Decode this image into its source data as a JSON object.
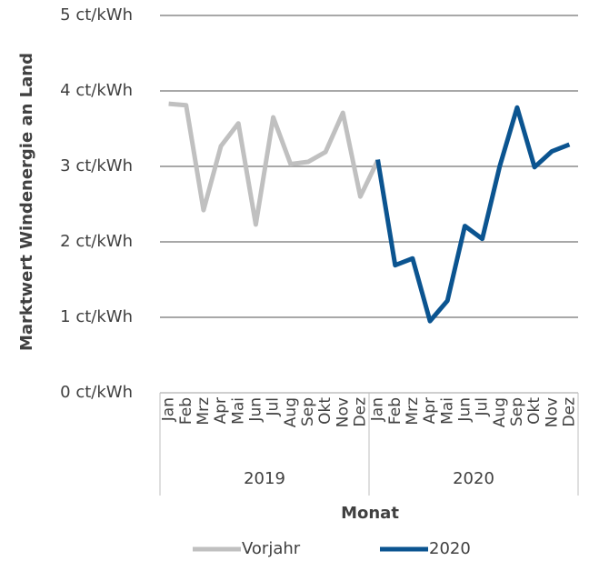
{
  "chart_data": {
    "type": "line",
    "y_label": "Marktwert Windenergie an Land",
    "x_label": "Monat",
    "categories": [
      "Jan",
      "Feb",
      "Mrz",
      "Apr",
      "Mai",
      "Jun",
      "Jul",
      "Aug",
      "Sep",
      "Okt",
      "Nov",
      "Dez",
      "Jan",
      "Feb",
      "Mrz",
      "Apr",
      "Mai",
      "Jun",
      "Jul",
      "Aug",
      "Sep",
      "Okt",
      "Nov",
      "Dez"
    ],
    "groups": [
      "2019",
      "2020"
    ],
    "series": [
      {
        "name": "Vorjahr",
        "color": "#c0c0c0",
        "values": [
          3.83,
          3.81,
          2.42,
          3.27,
          3.57,
          2.23,
          3.65,
          3.03,
          3.06,
          3.19,
          3.71,
          2.6,
          3.08,
          null,
          null,
          null,
          null,
          null,
          null,
          null,
          null,
          null,
          null,
          null
        ]
      },
      {
        "name": "2020",
        "color": "#0b5490",
        "values": [
          null,
          null,
          null,
          null,
          null,
          null,
          null,
          null,
          null,
          null,
          null,
          null,
          3.09,
          1.69,
          1.78,
          0.95,
          1.22,
          2.21,
          2.04,
          3.0,
          3.78,
          2.99,
          3.2,
          3.29
        ]
      }
    ],
    "ylim": [
      0,
      5
    ],
    "yticks": [
      {
        "value": 0,
        "label": "0 ct/kWh"
      },
      {
        "value": 1,
        "label": "1 ct/kWh"
      },
      {
        "value": 2,
        "label": "2 ct/kWh"
      },
      {
        "value": 3,
        "label": "3 ct/kWh"
      },
      {
        "value": 4,
        "label": "4 ct/kWh"
      },
      {
        "value": 5,
        "label": "5 ct/kWh"
      }
    ],
    "grid": true,
    "legend": "bottom"
  }
}
